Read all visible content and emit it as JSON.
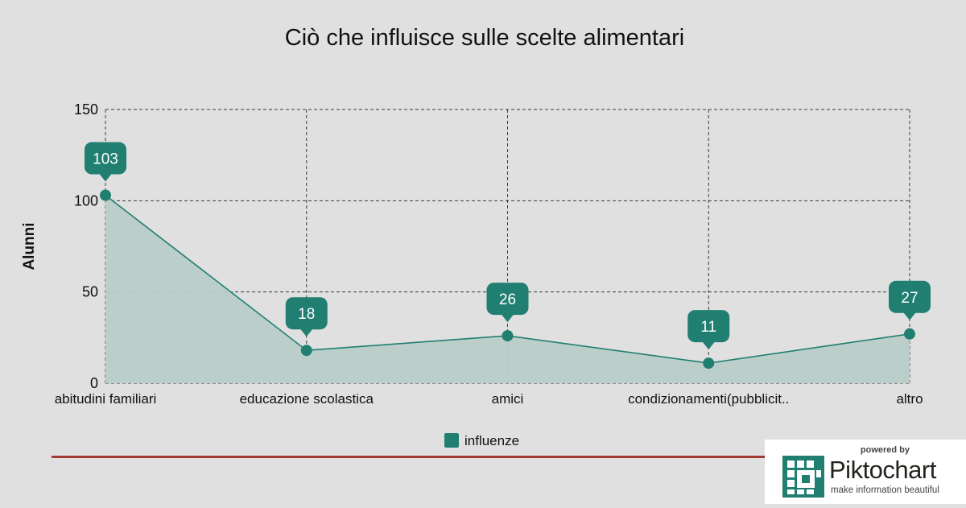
{
  "chart_data": {
    "type": "area",
    "title": "Ciò che influisce sulle scelte alimentari",
    "xlabel": "",
    "ylabel": "Alunni",
    "categories": [
      "abitudini familiari",
      "educazione scolastica",
      "amici",
      "condizionamenti(pubblicit..",
      "altro"
    ],
    "series": [
      {
        "name": "influenze",
        "values": [
          103,
          18,
          26,
          11,
          27
        ]
      }
    ],
    "ylim": [
      0,
      150
    ],
    "yticks": [
      0,
      50,
      100,
      150
    ],
    "grid": true,
    "grid_style": "dashed",
    "legend": "bottom-center",
    "data_labels": true,
    "colors": {
      "series": "#217f72",
      "fill": "#b9ccc8",
      "grid": "#3a3a3a",
      "background": "#e0e0e0",
      "text": "#111111"
    }
  },
  "footer": {
    "divider_color": "#a33a33",
    "powered_by": "powered by",
    "brand_first": "Pikto",
    "brand_second": "chart",
    "tagline": "make information beautiful",
    "brand_icon": "piktochart-logo-icon",
    "brand_color": "#217f72"
  }
}
